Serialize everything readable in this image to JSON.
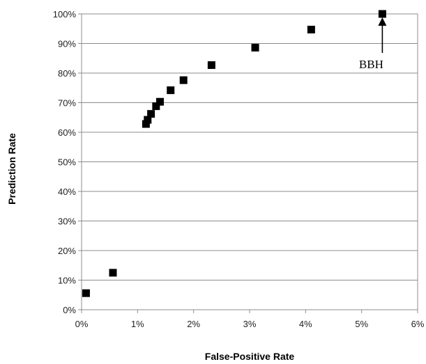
{
  "chart_data": {
    "type": "scatter",
    "title": "",
    "xlabel": "False-Positive Rate",
    "ylabel": "Prediction Rate",
    "xlim": [
      0,
      6
    ],
    "ylim": [
      0,
      100
    ],
    "x_ticks": [
      0,
      1,
      2,
      3,
      4,
      5,
      6
    ],
    "x_tick_labels": [
      "0%",
      "1%",
      "2%",
      "3%",
      "4%",
      "5%",
      "6%"
    ],
    "y_ticks": [
      0,
      10,
      20,
      30,
      40,
      50,
      60,
      70,
      80,
      90,
      100
    ],
    "y_tick_labels": [
      "0%",
      "10%",
      "20%",
      "30%",
      "40%",
      "50%",
      "60%",
      "70%",
      "80%",
      "90%",
      "100%"
    ],
    "grid": "horizontal",
    "marker": "square",
    "marker_color": "#000000",
    "series": [
      {
        "points": [
          {
            "x": 0.08,
            "y": 5.6
          },
          {
            "x": 0.56,
            "y": 12.5
          },
          {
            "x": 1.15,
            "y": 62.8
          },
          {
            "x": 1.18,
            "y": 64.2
          },
          {
            "x": 1.24,
            "y": 66.2
          },
          {
            "x": 1.33,
            "y": 68.8
          },
          {
            "x": 1.4,
            "y": 70.3
          },
          {
            "x": 1.59,
            "y": 74.2
          },
          {
            "x": 1.82,
            "y": 77.6
          },
          {
            "x": 2.32,
            "y": 82.7
          },
          {
            "x": 3.1,
            "y": 88.6
          },
          {
            "x": 4.1,
            "y": 94.7
          },
          {
            "x": 5.37,
            "y": 100.0
          }
        ]
      }
    ],
    "annotations": [
      {
        "text": "BBH",
        "x": 5.37,
        "y": 100.0
      }
    ]
  }
}
